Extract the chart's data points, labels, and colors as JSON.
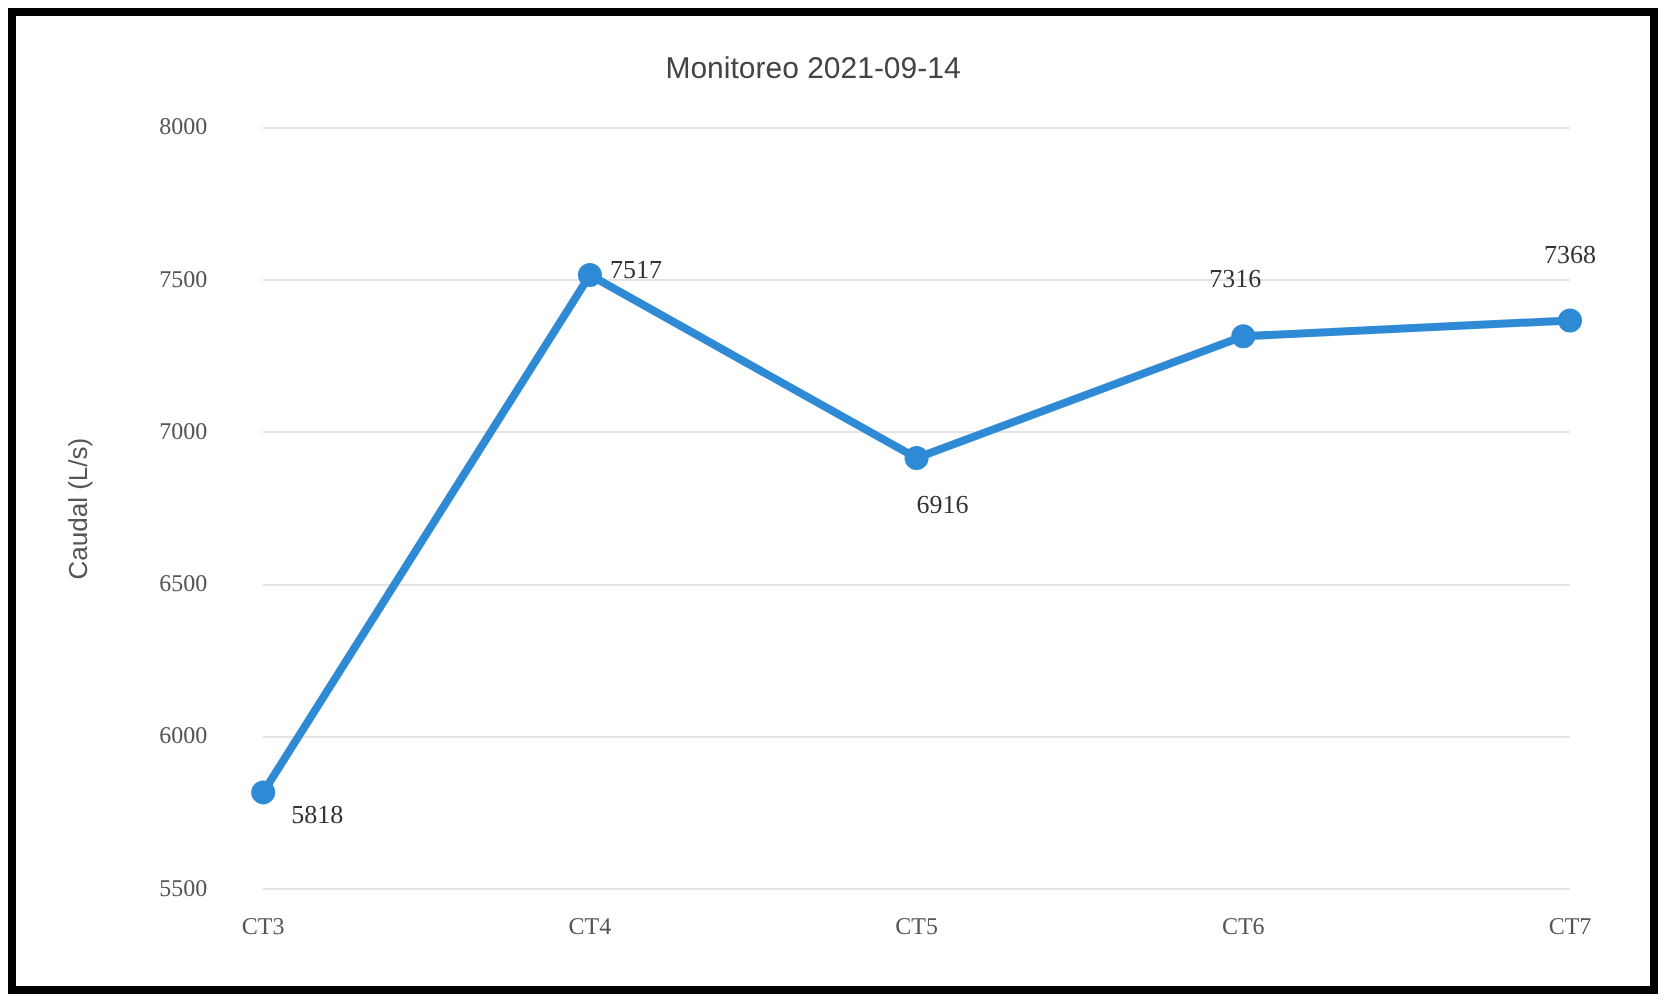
{
  "chart_data": {
    "type": "line",
    "title": "Monitoreo 2021-09-14",
    "ylabel": "Caudal (L/s)",
    "categories": [
      "CT3",
      "CT4",
      "CT5",
      "CT6",
      "CT7"
    ],
    "series": [
      {
        "color": "#2f8ad6",
        "values": [
          5818,
          7517,
          6916,
          7316,
          7368
        ]
      }
    ],
    "ylim": [
      5500,
      8000
    ],
    "yticks": [
      5500,
      6000,
      6500,
      7000,
      7500,
      8000
    ],
    "grid": "y",
    "marker": "circle",
    "line_style": "solid",
    "data_labels": true,
    "legend": false
  }
}
